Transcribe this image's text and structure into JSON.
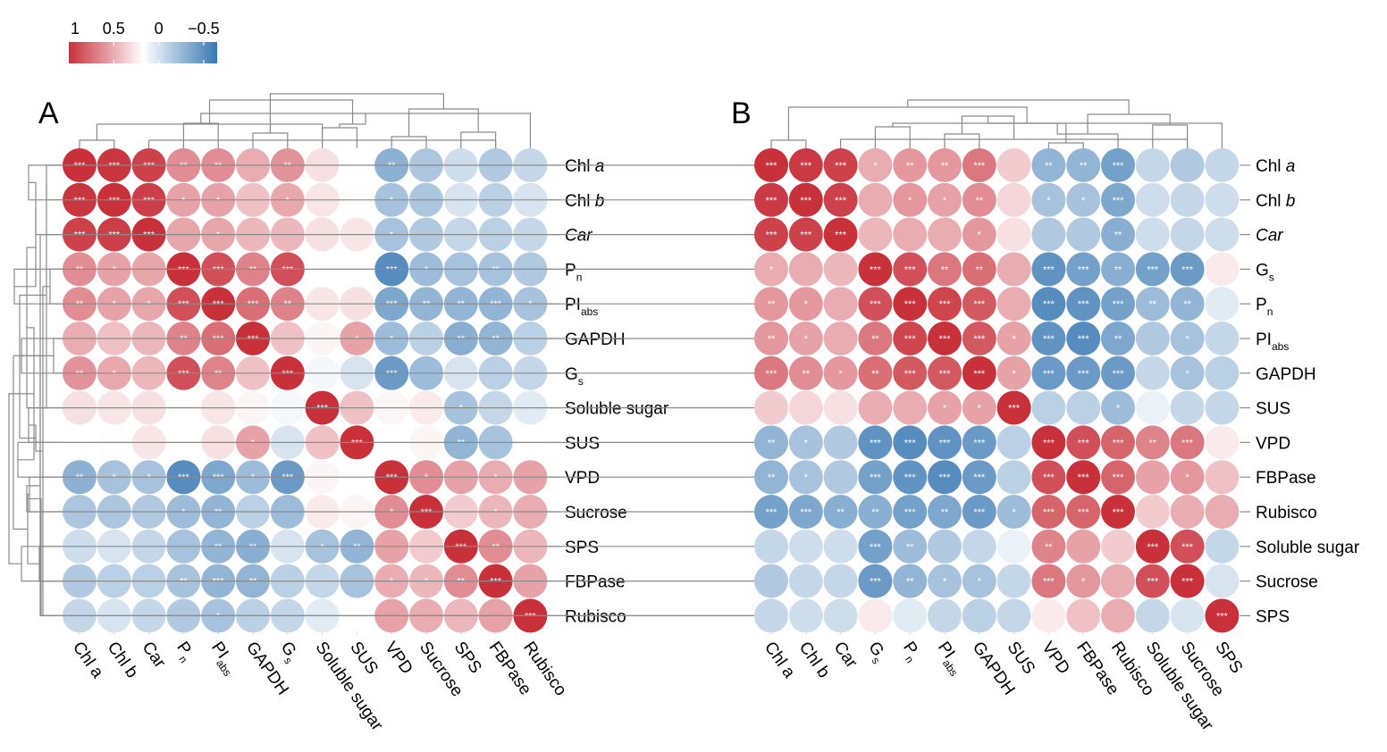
{
  "chart_data": [
    {
      "type": "heatmap",
      "panel": "A",
      "variables": [
        "Chl a",
        "Chl b",
        "Car",
        "Pn",
        "PIabs",
        "GAPDH",
        "Gs",
        "Soluble sugar",
        "SUS",
        "VPD",
        "Sucrose",
        "SPS",
        "FBPase",
        "Rubisco"
      ],
      "row_labels": [
        {
          "main": "Chl ",
          "italic": "a"
        },
        {
          "main": "Chl ",
          "italic": "b"
        },
        {
          "main": "",
          "italic": "Car"
        },
        {
          "main": "P",
          "sub": "n"
        },
        {
          "main": "PI",
          "sub": "abs"
        },
        {
          "main": "GAPDH"
        },
        {
          "main": "G",
          "sub": "s"
        },
        {
          "main": "Soluble sugar"
        },
        {
          "main": "SUS"
        },
        {
          "main": "VPD"
        },
        {
          "main": "Sucrose"
        },
        {
          "main": "SPS"
        },
        {
          "main": "FBPase"
        },
        {
          "main": "Rubisco"
        }
      ],
      "col_labels": [
        {
          "main": "Chl a"
        },
        {
          "main": "Chl b"
        },
        {
          "main": "Car"
        },
        {
          "main": "P",
          "sub": "n"
        },
        {
          "main": "PI",
          "sub": "abs"
        },
        {
          "main": "GAPDH"
        },
        {
          "main": "G",
          "sub": "s"
        },
        {
          "main": "Soluble sugar"
        },
        {
          "main": "SUS"
        },
        {
          "main": "VPD"
        },
        {
          "main": "Sucrose"
        },
        {
          "main": "SPS"
        },
        {
          "main": "FBPase"
        },
        {
          "main": "Rubisco"
        }
      ],
      "values": [
        [
          1.0,
          0.97,
          0.92,
          0.55,
          0.55,
          0.4,
          0.52,
          0.15,
          0.0,
          -0.58,
          -0.42,
          -0.25,
          -0.4,
          -0.3
        ],
        [
          0.97,
          1.0,
          0.93,
          0.45,
          0.45,
          0.3,
          0.42,
          0.12,
          0.01,
          -0.45,
          -0.42,
          -0.2,
          -0.35,
          -0.2
        ],
        [
          0.92,
          0.93,
          1.0,
          0.43,
          0.43,
          0.35,
          0.35,
          0.15,
          0.12,
          -0.45,
          -0.4,
          -0.3,
          -0.35,
          -0.3
        ],
        [
          0.55,
          0.45,
          0.43,
          1.0,
          0.85,
          0.6,
          0.85,
          0.0,
          0.0,
          -0.85,
          -0.5,
          -0.45,
          -0.45,
          -0.4
        ],
        [
          0.55,
          0.45,
          0.43,
          0.85,
          1.0,
          0.7,
          0.6,
          0.12,
          0.15,
          -0.65,
          -0.55,
          -0.55,
          -0.55,
          -0.45
        ],
        [
          0.4,
          0.3,
          0.35,
          0.6,
          0.7,
          1.0,
          0.3,
          0.05,
          0.45,
          -0.5,
          -0.35,
          -0.6,
          -0.55,
          -0.35
        ],
        [
          0.52,
          0.42,
          0.35,
          0.85,
          0.6,
          0.3,
          1.0,
          -0.05,
          -0.2,
          -0.75,
          -0.5,
          -0.2,
          -0.35,
          -0.3
        ],
        [
          0.15,
          0.12,
          0.15,
          0.0,
          0.12,
          0.05,
          -0.05,
          1.0,
          0.3,
          0.05,
          0.1,
          -0.45,
          -0.3,
          -0.15
        ],
        [
          0.0,
          0.01,
          0.12,
          0.0,
          0.15,
          0.45,
          -0.2,
          0.3,
          1.0,
          0.0,
          0.05,
          -0.55,
          -0.45,
          0.0
        ],
        [
          -0.58,
          -0.45,
          -0.45,
          -0.85,
          -0.65,
          -0.5,
          -0.75,
          0.05,
          0.0,
          1.0,
          0.55,
          0.45,
          0.4,
          0.45
        ],
        [
          -0.42,
          -0.42,
          -0.4,
          -0.5,
          -0.55,
          -0.35,
          -0.5,
          0.1,
          0.05,
          0.55,
          1.0,
          0.25,
          0.35,
          0.4
        ],
        [
          -0.25,
          -0.2,
          -0.3,
          -0.45,
          -0.55,
          -0.6,
          -0.2,
          -0.45,
          -0.55,
          0.45,
          0.25,
          1.0,
          0.55,
          0.35
        ],
        [
          -0.4,
          -0.35,
          -0.35,
          -0.45,
          -0.55,
          -0.55,
          -0.35,
          -0.3,
          -0.45,
          0.4,
          0.35,
          0.55,
          1.0,
          0.45
        ],
        [
          -0.3,
          -0.2,
          -0.3,
          -0.4,
          -0.45,
          -0.35,
          -0.3,
          -0.15,
          0.0,
          0.45,
          0.4,
          0.35,
          0.45,
          1.0
        ]
      ],
      "significance": [
        [
          "***",
          "***",
          "***",
          "**",
          "**",
          "",
          "**",
          "",
          "",
          "**",
          "",
          "",
          "",
          ""
        ],
        [
          "***",
          "***",
          "***",
          "*",
          "*",
          "",
          "*",
          "",
          "",
          "*",
          "",
          "",
          "",
          ""
        ],
        [
          "***",
          "***",
          "***",
          "",
          "*",
          "",
          "",
          "",
          "",
          "*",
          "",
          "",
          "",
          ""
        ],
        [
          "**",
          "*",
          "",
          "***",
          "***",
          "**",
          "***",
          "",
          "",
          "***",
          "*",
          "",
          "**",
          ""
        ],
        [
          "**",
          "*",
          "*",
          "***",
          "***",
          "***",
          "**",
          "",
          "",
          "***",
          "**",
          "**",
          "***",
          "*"
        ],
        [
          "",
          "",
          "",
          "**",
          "***",
          "***",
          "",
          "",
          "*",
          "*",
          "",
          "**",
          "**",
          ""
        ],
        [
          "**",
          "*",
          "",
          "***",
          "**",
          "",
          "***",
          "",
          "",
          "***",
          "",
          "",
          "",
          ""
        ],
        [
          "",
          "",
          "",
          "",
          "",
          "",
          "",
          "***",
          "",
          "",
          "",
          "*",
          "",
          ""
        ],
        [
          "",
          "",
          "",
          "",
          "",
          "*",
          "",
          "",
          "***",
          "",
          "",
          "**",
          "",
          ""
        ],
        [
          "**",
          "*",
          "*",
          "***",
          "***",
          "*",
          "***",
          "",
          "",
          "***",
          "*",
          "",
          "*",
          ""
        ],
        [
          "",
          "",
          "",
          "*",
          "**",
          "",
          "",
          "",
          "",
          "*",
          "***",
          "",
          "*",
          ""
        ],
        [
          "",
          "",
          "",
          "",
          "**",
          "**",
          "",
          "*",
          "**",
          "",
          "",
          "***",
          "**",
          ""
        ],
        [
          "",
          "",
          "",
          "**",
          "***",
          "**",
          "",
          "",
          "",
          "*",
          "*",
          "**",
          "***",
          ""
        ],
        [
          "",
          "",
          "",
          "",
          "*",
          "",
          "",
          "",
          "",
          "",
          "",
          "",
          "",
          "***"
        ]
      ]
    },
    {
      "type": "heatmap",
      "panel": "B",
      "variables": [
        "Chl a",
        "Chl b",
        "Car",
        "Gs",
        "Pn",
        "PIabs",
        "GAPDH",
        "SUS",
        "VPD",
        "FBPase",
        "Rubisco",
        "Soluble sugar",
        "Sucrose",
        "SPS"
      ],
      "row_labels": [
        {
          "main": "Chl ",
          "italic": "a"
        },
        {
          "main": "Chl ",
          "italic": "b"
        },
        {
          "main": "",
          "italic": "Car"
        },
        {
          "main": "G",
          "sub": "s"
        },
        {
          "main": "P",
          "sub": "n"
        },
        {
          "main": "PI",
          "sub": "abs"
        },
        {
          "main": "GAPDH"
        },
        {
          "main": "SUS"
        },
        {
          "main": "VPD"
        },
        {
          "main": "FBPase"
        },
        {
          "main": "Rubisco"
        },
        {
          "main": "Soluble sugar"
        },
        {
          "main": "Sucrose"
        },
        {
          "main": "SPS"
        }
      ],
      "col_labels": [
        {
          "main": "Chl a"
        },
        {
          "main": "Chl b"
        },
        {
          "main": "Car"
        },
        {
          "main": "G",
          "sub": "s"
        },
        {
          "main": "P",
          "sub": "n"
        },
        {
          "main": "PI",
          "sub": "abs"
        },
        {
          "main": "GAPDH"
        },
        {
          "main": "SUS"
        },
        {
          "main": "VPD"
        },
        {
          "main": "FBPase"
        },
        {
          "main": "Rubisco"
        },
        {
          "main": "Soluble sugar"
        },
        {
          "main": "Sucrose"
        },
        {
          "main": "SPS"
        }
      ],
      "values": [
        [
          1.0,
          0.95,
          0.92,
          0.4,
          0.5,
          0.5,
          0.65,
          0.25,
          -0.55,
          -0.55,
          -0.7,
          -0.3,
          -0.4,
          -0.3
        ],
        [
          0.95,
          1.0,
          0.92,
          0.4,
          0.5,
          0.45,
          0.55,
          0.2,
          -0.45,
          -0.45,
          -0.65,
          -0.25,
          -0.3,
          -0.25
        ],
        [
          0.92,
          0.92,
          1.0,
          0.35,
          0.4,
          0.4,
          0.5,
          0.15,
          -0.4,
          -0.4,
          -0.6,
          -0.25,
          -0.3,
          -0.25
        ],
        [
          0.4,
          0.4,
          0.35,
          1.0,
          0.85,
          0.65,
          0.7,
          0.4,
          -0.8,
          -0.7,
          -0.6,
          -0.7,
          -0.75,
          0.1
        ],
        [
          0.5,
          0.5,
          0.4,
          0.85,
          1.0,
          0.9,
          0.8,
          0.4,
          -0.85,
          -0.8,
          -0.7,
          -0.5,
          -0.55,
          -0.15
        ],
        [
          0.5,
          0.45,
          0.4,
          0.65,
          0.9,
          1.0,
          0.8,
          0.45,
          -0.8,
          -0.85,
          -0.65,
          -0.4,
          -0.45,
          -0.3
        ],
        [
          0.65,
          0.55,
          0.5,
          0.7,
          0.8,
          0.8,
          1.0,
          0.45,
          -0.75,
          -0.75,
          -0.75,
          -0.3,
          -0.45,
          -0.35
        ],
        [
          0.25,
          0.2,
          0.15,
          0.4,
          0.4,
          0.45,
          0.45,
          1.0,
          -0.35,
          -0.35,
          -0.5,
          -0.1,
          -0.3,
          -0.3
        ],
        [
          -0.55,
          -0.45,
          -0.4,
          -0.8,
          -0.85,
          -0.8,
          -0.75,
          -0.35,
          1.0,
          0.85,
          0.75,
          0.6,
          0.65,
          0.1
        ],
        [
          -0.55,
          -0.45,
          -0.4,
          -0.7,
          -0.8,
          -0.85,
          -0.75,
          -0.35,
          0.85,
          1.0,
          0.75,
          0.45,
          0.5,
          0.3
        ],
        [
          -0.7,
          -0.65,
          -0.6,
          -0.6,
          -0.7,
          -0.65,
          -0.75,
          -0.5,
          0.75,
          0.75,
          1.0,
          0.25,
          0.4,
          0.4
        ],
        [
          -0.3,
          -0.25,
          -0.25,
          -0.7,
          -0.5,
          -0.4,
          -0.3,
          -0.1,
          0.6,
          0.45,
          0.25,
          1.0,
          0.85,
          -0.3
        ],
        [
          -0.4,
          -0.3,
          -0.3,
          -0.75,
          -0.55,
          -0.45,
          -0.45,
          -0.3,
          0.65,
          0.5,
          0.4,
          0.85,
          1.0,
          -0.2
        ],
        [
          -0.3,
          -0.25,
          -0.25,
          0.1,
          -0.15,
          -0.3,
          -0.35,
          -0.3,
          0.1,
          0.3,
          0.4,
          -0.3,
          -0.2,
          1.0
        ]
      ],
      "significance": [
        [
          "***",
          "***",
          "***",
          "*",
          "**",
          "**",
          "***",
          "",
          "**",
          "**",
          "***",
          "",
          "",
          ""
        ],
        [
          "***",
          "***",
          "***",
          "",
          "*",
          "*",
          "**",
          "",
          "*",
          "*",
          "***",
          "",
          "",
          ""
        ],
        [
          "***",
          "***",
          "***",
          "",
          "",
          "",
          "*",
          "",
          "",
          "",
          "**",
          "",
          "",
          ""
        ],
        [
          "*",
          "",
          "",
          "***",
          "***",
          "**",
          "**",
          "",
          "***",
          "***",
          "**",
          "***",
          "***",
          ""
        ],
        [
          "**",
          "*",
          "",
          "***",
          "***",
          "***",
          "***",
          "",
          "***",
          "***",
          "***",
          "**",
          "**",
          ""
        ],
        [
          "**",
          "*",
          "",
          "**",
          "***",
          "***",
          "***",
          "*",
          "***",
          "***",
          "**",
          "",
          "*",
          ""
        ],
        [
          "***",
          "**",
          "*",
          "**",
          "***",
          "***",
          "***",
          "*",
          "***",
          "***",
          "***",
          "",
          "*",
          ""
        ],
        [
          "",
          "",
          "",
          "",
          "",
          "*",
          "*",
          "***",
          "",
          "",
          "*",
          "",
          "",
          ""
        ],
        [
          "**",
          "*",
          "",
          "***",
          "***",
          "***",
          "***",
          "",
          "***",
          "***",
          "***",
          "**",
          "***",
          ""
        ],
        [
          "**",
          "*",
          "",
          "***",
          "***",
          "***",
          "***",
          "",
          "***",
          "***",
          "***",
          "",
          "*",
          ""
        ],
        [
          "***",
          "***",
          "**",
          "**",
          "***",
          "**",
          "***",
          "*",
          "***",
          "***",
          "***",
          "",
          "",
          ""
        ],
        [
          "",
          "",
          "",
          "***",
          "**",
          "",
          "",
          "",
          "**",
          "",
          "",
          "***",
          "***",
          ""
        ],
        [
          "",
          "",
          "",
          "***",
          "**",
          "*",
          "*",
          "",
          "***",
          "*",
          "",
          "***",
          "***",
          ""
        ],
        [
          "",
          "",
          "",
          "",
          "",
          "",
          "",
          "",
          "",
          "",
          "",
          "",
          "",
          "***"
        ]
      ]
    }
  ],
  "legend": {
    "tick_labels": [
      "1",
      "0.5",
      "0",
      "−0.5"
    ],
    "tick_values": [
      1,
      0.5,
      0,
      -0.5
    ],
    "range": [
      1,
      -0.65
    ]
  },
  "colors": {
    "positive": "#c8303a",
    "neutral": "#ffffff",
    "negative": "#3978b3",
    "dendrogram": "#8a8a8a",
    "significance_text": "#ffffff"
  }
}
